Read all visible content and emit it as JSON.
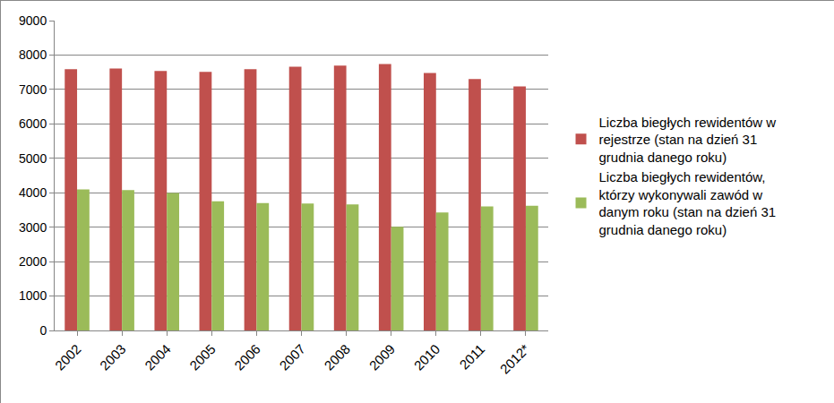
{
  "chart_data": {
    "type": "bar",
    "categories": [
      "2002",
      "2003",
      "2004",
      "2005",
      "2006",
      "2007",
      "2008",
      "2009",
      "2010",
      "2011",
      "2012*"
    ],
    "series": [
      {
        "name": "Liczba biegłych rewidentów w rejestrze (stan na dzień 31 grudnia danego roku)",
        "color": "#c0504d",
        "values": [
          7590,
          7610,
          7540,
          7510,
          7590,
          7660,
          7690,
          7740,
          7480,
          7300,
          7090
        ]
      },
      {
        "name": "Liczba biegłych rewidentów, którzy wykonywali zawód w danym roku (stan na dzień 31 grudnia danego roku)",
        "color": "#9bbb59",
        "values": [
          4100,
          4080,
          3990,
          3750,
          3700,
          3690,
          3660,
          3010,
          3430,
          3600,
          3620
        ]
      }
    ],
    "ylim": [
      0,
      9000
    ],
    "yticks": [
      0,
      1000,
      2000,
      3000,
      4000,
      5000,
      6000,
      7000,
      8000,
      9000
    ],
    "grid": true,
    "legend": "right"
  }
}
